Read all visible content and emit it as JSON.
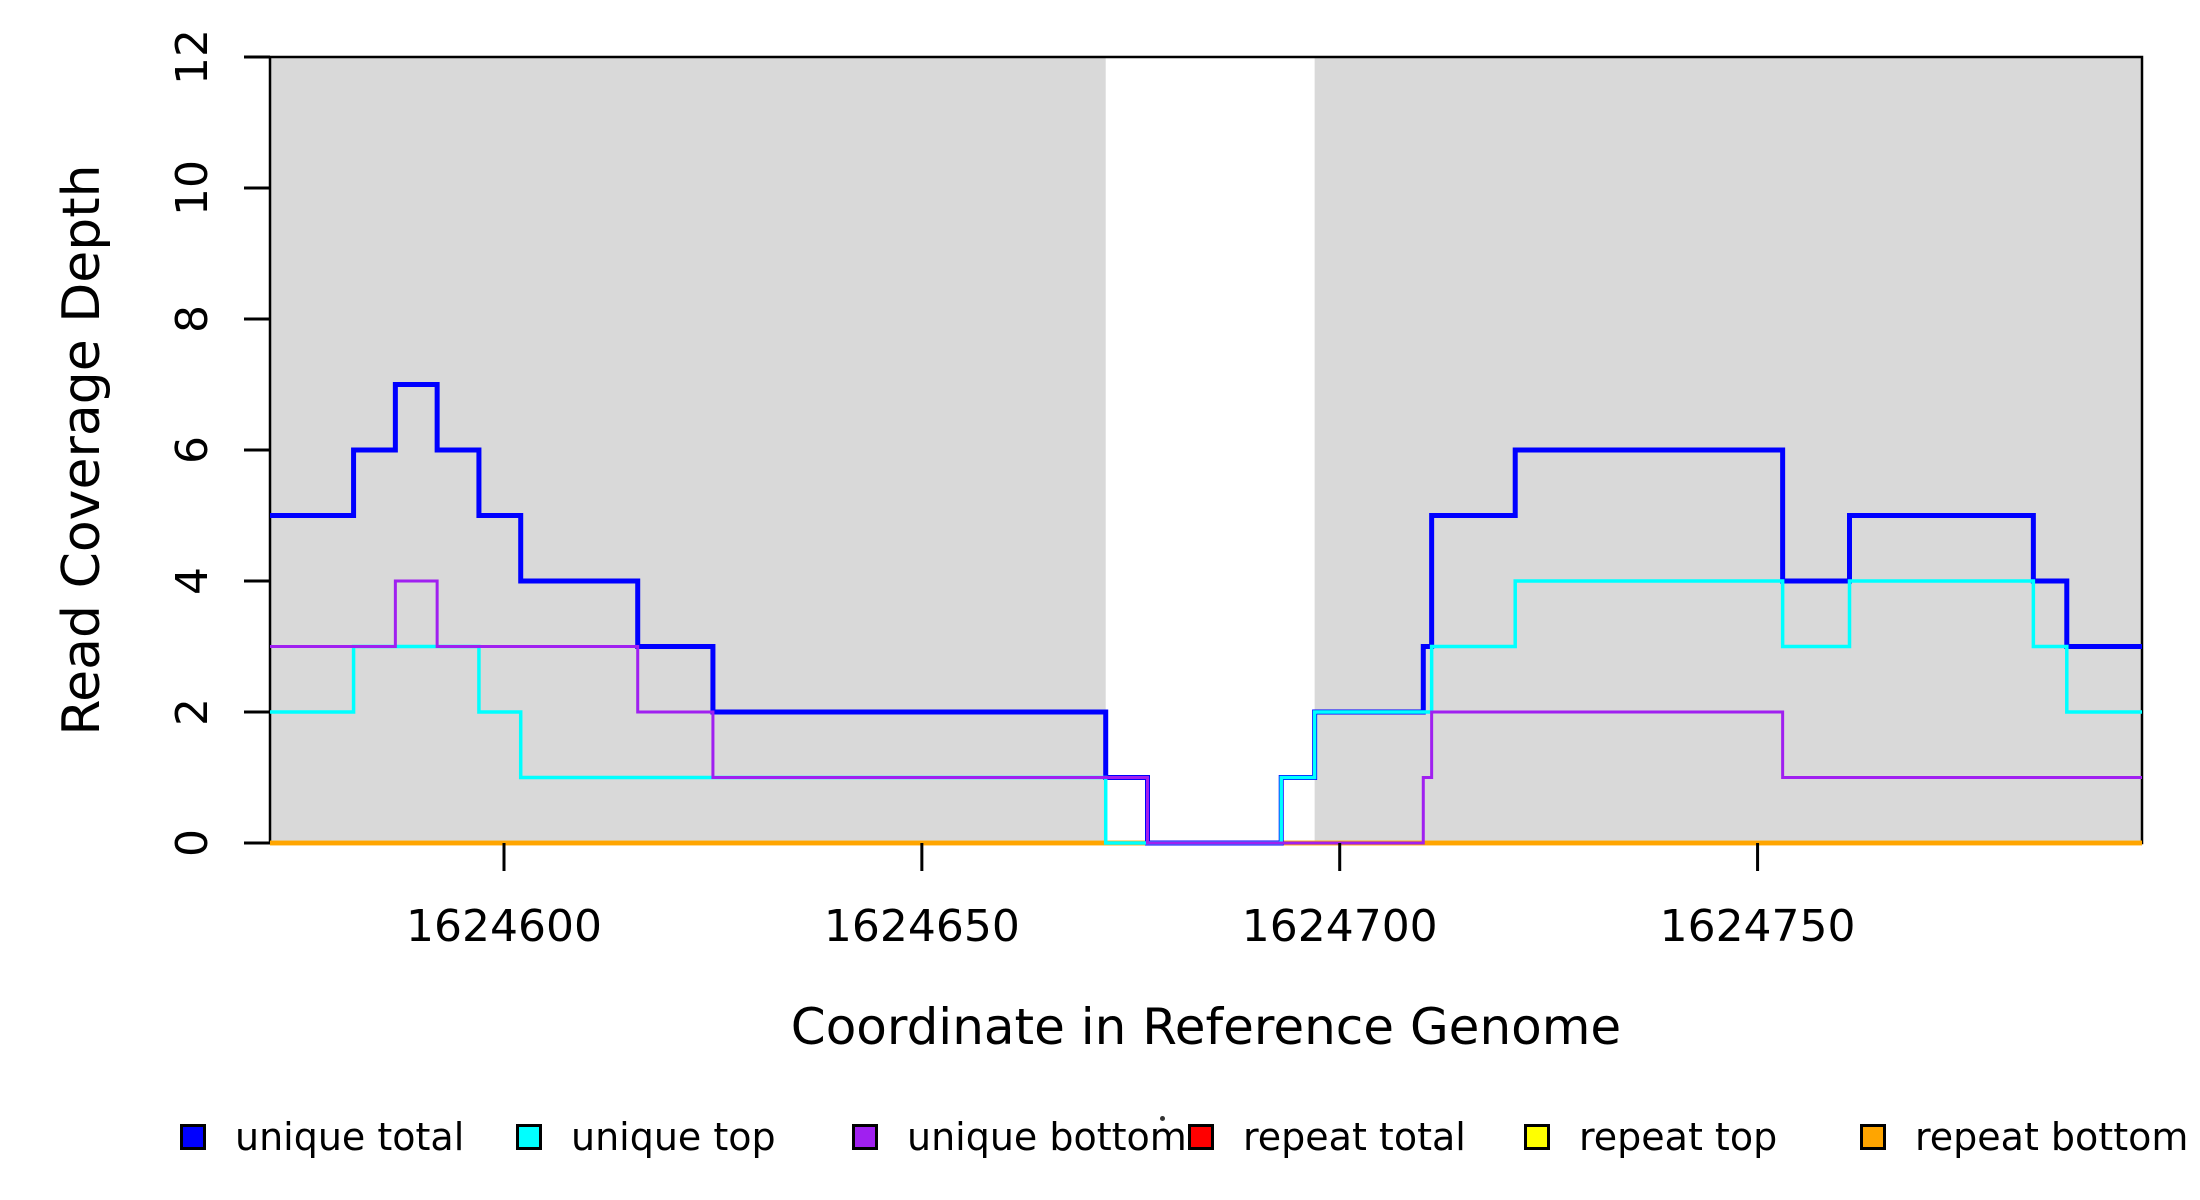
{
  "figure": {
    "background": "#FFFFFF",
    "x_axis": {
      "title": "Coordinate in Reference Genome",
      "tick_values": [
        1624600,
        1624650,
        1624700,
        1624750
      ],
      "tick_labels": [
        "1624600",
        "1624650",
        "1624700",
        "1624750"
      ]
    },
    "y_axis": {
      "title": "Read Coverage Depth",
      "tick_values": [
        0,
        2,
        4,
        6,
        8,
        10,
        12
      ],
      "tick_labels": [
        "0",
        "2",
        "4",
        "6",
        "8",
        "10",
        "12"
      ]
    }
  },
  "chart_data": {
    "type": "line",
    "subtype": "step-coverage",
    "title": "",
    "xlabel": "Coordinate in Reference Genome",
    "ylabel": "Read Coverage Depth",
    "x_range": [
      1624572,
      1624796
    ],
    "y_range": [
      0,
      12
    ],
    "grid": false,
    "legend_position": "bottom",
    "shaded_regions": [
      {
        "name": "left-gray-region",
        "x0": 1624572,
        "x1": 1624672,
        "color": "#D9D9D9"
      },
      {
        "name": "right-gray-region",
        "x0": 1624697,
        "x1": 1624796,
        "color": "#D9D9D9"
      }
    ],
    "frame_color": "#000000",
    "series": [
      {
        "name": "unique total",
        "color": "#0000FF",
        "line_width": 5,
        "draw_order": 3,
        "steps": [
          [
            1624572,
            5
          ],
          [
            1624582,
            6
          ],
          [
            1624587,
            7
          ],
          [
            1624592,
            6
          ],
          [
            1624597,
            5
          ],
          [
            1624602,
            4
          ],
          [
            1624616,
            3
          ],
          [
            1624625,
            2
          ],
          [
            1624672,
            1
          ],
          [
            1624677,
            0
          ],
          [
            1624693,
            1
          ],
          [
            1624697,
            2
          ],
          [
            1624710,
            3
          ],
          [
            1624711,
            5
          ],
          [
            1624721,
            6
          ],
          [
            1624753,
            4
          ],
          [
            1624761,
            5
          ],
          [
            1624783,
            4
          ],
          [
            1624787,
            3
          ]
        ]
      },
      {
        "name": "unique top",
        "color": "#00FFFF",
        "line_width": 3.5,
        "draw_order": 4,
        "steps": [
          [
            1624572,
            2
          ],
          [
            1624582,
            3
          ],
          [
            1624597,
            2
          ],
          [
            1624602,
            1
          ],
          [
            1624672,
            0
          ],
          [
            1624693,
            1
          ],
          [
            1624697,
            2
          ],
          [
            1624711,
            3
          ],
          [
            1624721,
            4
          ],
          [
            1624753,
            3
          ],
          [
            1624761,
            4
          ],
          [
            1624783,
            3
          ],
          [
            1624787,
            2
          ]
        ]
      },
      {
        "name": "unique bottom",
        "color": "#A020F0",
        "line_width": 3,
        "draw_order": 5,
        "steps": [
          [
            1624572,
            3
          ],
          [
            1624587,
            4
          ],
          [
            1624592,
            3
          ],
          [
            1624616,
            2
          ],
          [
            1624625,
            1
          ],
          [
            1624677,
            0
          ],
          [
            1624710,
            1
          ],
          [
            1624711,
            2
          ],
          [
            1624753,
            1
          ]
        ]
      },
      {
        "name": "repeat total",
        "color": "#FF0000",
        "line_width": 4.5,
        "draw_order": 0,
        "steps": [
          [
            1624572,
            0
          ]
        ]
      },
      {
        "name": "repeat top",
        "color": "#FFFF00",
        "line_width": 4.5,
        "draw_order": 1,
        "steps": [
          [
            1624572,
            0
          ]
        ]
      },
      {
        "name": "repeat bottom",
        "color": "#FFA500",
        "line_width": 4.5,
        "draw_order": 2,
        "steps": [
          [
            1624572,
            0
          ]
        ]
      }
    ]
  }
}
